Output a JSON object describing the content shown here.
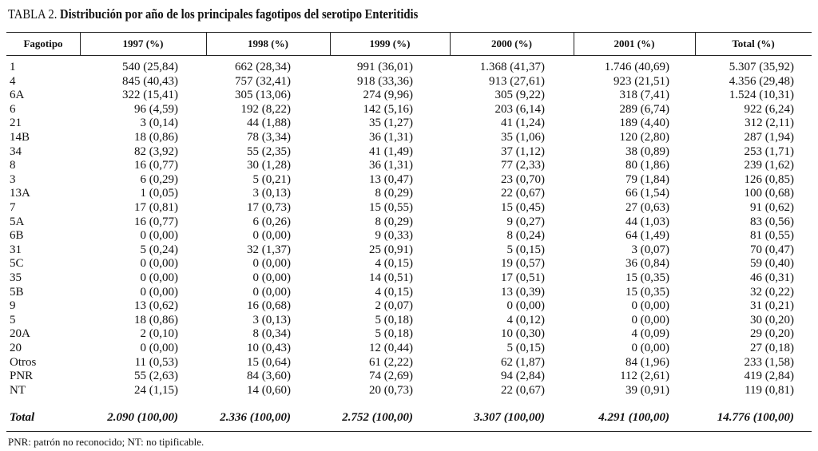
{
  "title": {
    "label": "TABLA 2.",
    "text": "Distribución por año de los principales fagotipos del serotipo Enteritidis"
  },
  "table": {
    "header": [
      "Fagotipo",
      "1997 (%)",
      "1998 (%)",
      "1999 (%)",
      "2000 (%)",
      "2001 (%)",
      "Total (%)"
    ],
    "rows": [
      [
        "1",
        "540 (25,84)",
        "662 (28,34)",
        "991 (36,01)",
        "1.368 (41,37)",
        "1.746 (40,69)",
        "5.307 (35,92)"
      ],
      [
        "4",
        "845 (40,43)",
        "757 (32,41)",
        "918 (33,36)",
        "913 (27,61)",
        "923 (21,51)",
        "4.356 (29,48)"
      ],
      [
        "6A",
        "322 (15,41)",
        "305 (13,06)",
        "274 (9,96)",
        "305 (9,22)",
        "318 (7,41)",
        "1.524 (10,31)"
      ],
      [
        "6",
        "96 (4,59)",
        "192 (8,22)",
        "142 (5,16)",
        "203 (6,14)",
        "289 (6,74)",
        "922 (6,24)"
      ],
      [
        "21",
        "3 (0,14)",
        "44 (1,88)",
        "35 (1,27)",
        "41 (1,24)",
        "189 (4,40)",
        "312 (2,11)"
      ],
      [
        "14B",
        "18 (0,86)",
        "78 (3,34)",
        "36 (1,31)",
        "35 (1,06)",
        "120 (2,80)",
        "287 (1,94)"
      ],
      [
        "34",
        "82 (3,92)",
        "55 (2,35)",
        "41 (1,49)",
        "37 (1,12)",
        "38 (0,89)",
        "253 (1,71)"
      ],
      [
        "8",
        "16 (0,77)",
        "30 (1,28)",
        "36 (1,31)",
        "77 (2,33)",
        "80 (1,86)",
        "239 (1,62)"
      ],
      [
        "3",
        "6 (0,29)",
        "5 (0,21)",
        "13 (0,47)",
        "23 (0,70)",
        "79 (1,84)",
        "126 (0,85)"
      ],
      [
        "13A",
        "1 (0,05)",
        "3 (0,13)",
        "8 (0,29)",
        "22 (0,67)",
        "66 (1,54)",
        "100 (0,68)"
      ],
      [
        "7",
        "17 (0,81)",
        "17 (0,73)",
        "15 (0,55)",
        "15 (0,45)",
        "27 (0,63)",
        "91 (0,62)"
      ],
      [
        "5A",
        "16 (0,77)",
        "6 (0,26)",
        "8 (0,29)",
        "9 (0,27)",
        "44 (1,03)",
        "83 (0,56)"
      ],
      [
        "6B",
        "0 (0,00)",
        "0 (0,00)",
        "9 (0,33)",
        "8 (0,24)",
        "64 (1,49)",
        "81 (0,55)"
      ],
      [
        "31",
        "5 (0,24)",
        "32 (1,37)",
        "25 (0,91)",
        "5 (0,15)",
        "3 (0,07)",
        "70 (0,47)"
      ],
      [
        "5C",
        "0 (0,00)",
        "0 (0,00)",
        "4 (0,15)",
        "19 (0,57)",
        "36 (0,84)",
        "59 (0,40)"
      ],
      [
        "35",
        "0 (0,00)",
        "0 (0,00)",
        "14 (0,51)",
        "17 (0,51)",
        "15 (0,35)",
        "46 (0,31)"
      ],
      [
        "5B",
        "0 (0,00)",
        "0 (0,00)",
        "4 (0,15)",
        "13 (0,39)",
        "15 (0,35)",
        "32 (0,22)"
      ],
      [
        "9",
        "13 (0,62)",
        "16 (0,68)",
        "2 (0,07)",
        "0 (0,00)",
        "0 (0,00)",
        "31 (0,21)"
      ],
      [
        "5",
        "18 (0,86)",
        "3 (0,13)",
        "5 (0,18)",
        "4 (0,12)",
        "0 (0,00)",
        "30 (0,20)"
      ],
      [
        "20A",
        "2 (0,10)",
        "8 (0,34)",
        "5 (0,18)",
        "10 (0,30)",
        "4 (0,09)",
        "29 (0,20)"
      ],
      [
        "20",
        "0 (0,00)",
        "10 (0,43)",
        "12 (0,44)",
        "5 (0,15)",
        "0 (0,00)",
        "27 (0,18)"
      ],
      [
        "Otros",
        "11 (0,53)",
        "15 (0,64)",
        "61 (2,22)",
        "62 (1,87)",
        "84 (1,96)",
        "233 (1,58)"
      ],
      [
        "PNR",
        "55 (2,63)",
        "84 (3,60)",
        "74 (2,69)",
        "94 (2,84)",
        "112 (2,61)",
        "419 (2,84)"
      ],
      [
        "NT",
        "24 (1,15)",
        "14 (0,60)",
        "20 (0,73)",
        "22 (0,67)",
        "39 (0,91)",
        "119 (0,81)"
      ]
    ],
    "total": [
      "Total",
      "2.090 (100,00)",
      "2.336 (100,00)",
      "2.752 (100,00)",
      "3.307 (100,00)",
      "4.291 (100,00)",
      "14.776 (100,00)"
    ]
  },
  "footnote": "PNR: patrón no reconocido; NT: no tipificable."
}
